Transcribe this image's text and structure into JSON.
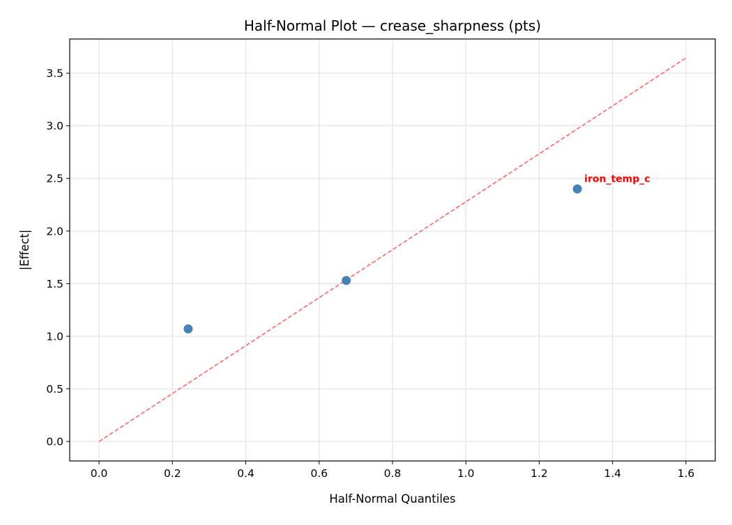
{
  "chart_data": {
    "type": "scatter",
    "title": "Half-Normal Plot — crease_sharpness (pts)",
    "xlabel": "Half-Normal Quantiles",
    "ylabel": "|Effect|",
    "xlim": [
      -0.08,
      1.68
    ],
    "ylim": [
      -0.185,
      3.825
    ],
    "xticks": [
      0.0,
      0.2,
      0.4,
      0.6,
      0.8,
      1.0,
      1.2,
      1.4,
      1.6
    ],
    "xtick_labels": [
      "0.0",
      "0.2",
      "0.4",
      "0.6",
      "0.8",
      "1.0",
      "1.2",
      "1.4",
      "1.6"
    ],
    "yticks": [
      0.0,
      0.5,
      1.0,
      1.5,
      2.0,
      2.5,
      3.0,
      3.5
    ],
    "ytick_labels": [
      "0.0",
      "0.5",
      "1.0",
      "1.5",
      "2.0",
      "2.5",
      "3.0",
      "3.5"
    ],
    "grid": true,
    "points": [
      {
        "x": 0.243,
        "y": 1.07,
        "label": ""
      },
      {
        "x": 0.674,
        "y": 1.53,
        "label": ""
      },
      {
        "x": 1.304,
        "y": 2.4,
        "label": "iron_temp_c"
      }
    ],
    "reference_line": {
      "x": [
        0.0,
        1.6
      ],
      "y": [
        0.0,
        3.645
      ],
      "style": "dashed",
      "color": "#ff6666"
    },
    "point_color": "#4682b4",
    "label_color": "#ff0000"
  }
}
